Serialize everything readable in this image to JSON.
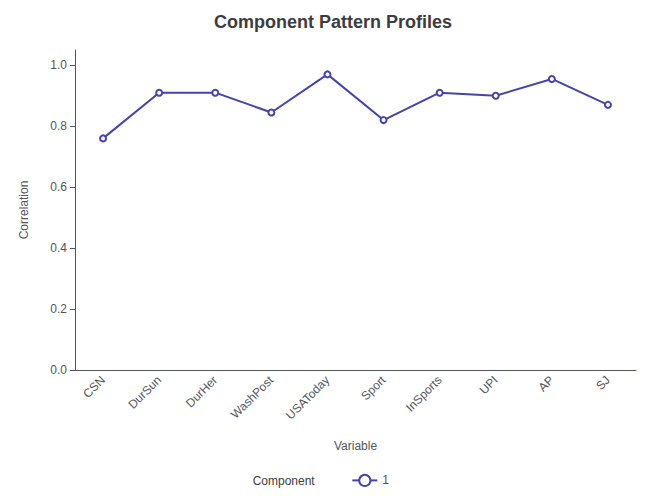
{
  "chart_data": {
    "type": "line",
    "title": "Component Pattern Profiles",
    "xlabel": "Variable",
    "ylabel": "Correlation",
    "categories": [
      "CSN",
      "DurSun",
      "DurHer",
      "WashPost",
      "USAToday",
      "Sport",
      "InSports",
      "UPI",
      "AP",
      "SJ"
    ],
    "series": [
      {
        "name": "1",
        "color": "#4444aa",
        "values": [
          0.76,
          0.91,
          0.91,
          0.845,
          0.97,
          0.82,
          0.91,
          0.9,
          0.955,
          0.87
        ]
      }
    ],
    "legend_title": "Component",
    "ylim": [
      0.0,
      1.05
    ],
    "yticks": [
      {
        "value": 0.0,
        "label": "0.0"
      },
      0.2,
      0.4,
      0.6,
      0.8,
      {
        "value": 1.0,
        "label": "1.0"
      }
    ],
    "grid": false,
    "legend": "bottom"
  }
}
